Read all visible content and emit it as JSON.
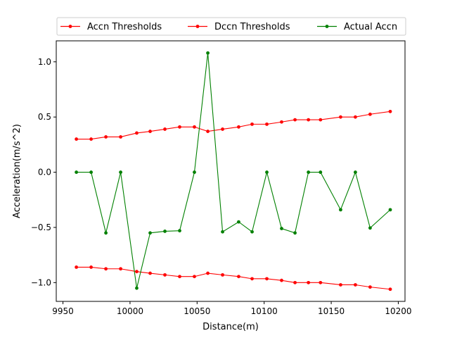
{
  "chart_data": {
    "type": "line",
    "title": "",
    "xlabel": "Distance(m)",
    "ylabel": "Acceleration(m/s^2)",
    "xlim": [
      9945,
      10205
    ],
    "ylim": [
      -1.17,
      1.19
    ],
    "xticks": [
      9950,
      10000,
      10050,
      10100,
      10150,
      10200
    ],
    "yticks": [
      -1.0,
      -0.5,
      0.0,
      0.5,
      1.0
    ],
    "xtick_labels": [
      "9950",
      "10000",
      "10050",
      "10100",
      "10150",
      "10200"
    ],
    "ytick_labels": [
      "−1.0",
      "−0.5",
      "0.0",
      "0.5",
      "1.0"
    ],
    "grid": false,
    "legend_placement": "top-outside",
    "x": [
      9960,
      9971,
      9982,
      9993,
      10005,
      10015,
      10026,
      10037,
      10048,
      10058,
      10069,
      10081,
      10091,
      10102,
      10113,
      10123,
      10133,
      10142,
      10157,
      10168,
      10179,
      10194
    ],
    "series": [
      {
        "name": "Accn Thresholds",
        "color": "#ff0000",
        "values": [
          0.3,
          0.3,
          0.32,
          0.32,
          0.355,
          0.37,
          0.39,
          0.41,
          0.41,
          0.37,
          0.39,
          0.41,
          0.435,
          0.435,
          0.455,
          0.475,
          0.475,
          0.475,
          0.5,
          0.5,
          0.525,
          0.55
        ]
      },
      {
        "name": "Dccn Thresholds",
        "color": "#ff0000",
        "values": [
          -0.86,
          -0.86,
          -0.875,
          -0.875,
          -0.9,
          -0.915,
          -0.93,
          -0.945,
          -0.945,
          -0.915,
          -0.93,
          -0.945,
          -0.965,
          -0.965,
          -0.98,
          -1.0,
          -1.0,
          -1.0,
          -1.02,
          -1.02,
          -1.04,
          -1.06
        ]
      },
      {
        "name": "Actual Accn",
        "color": "#008000",
        "values": [
          0.0,
          0.0,
          -0.55,
          0.0,
          -1.05,
          -0.55,
          -0.535,
          -0.53,
          0.0,
          1.08,
          -0.54,
          -0.45,
          -0.54,
          0.0,
          -0.51,
          -0.55,
          0.0,
          0.0,
          -0.34,
          0.0,
          -0.505,
          -0.34
        ]
      }
    ]
  }
}
